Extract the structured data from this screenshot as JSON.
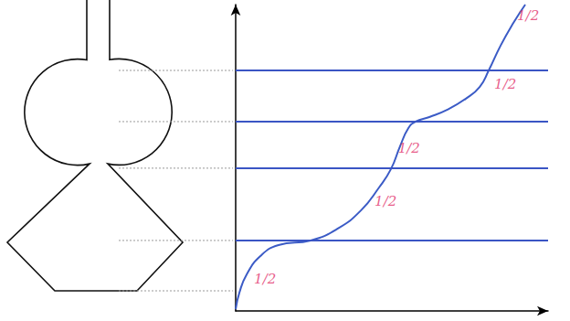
{
  "chart_data": {
    "type": "line",
    "xlim": [
      0,
      100
    ],
    "ylim": [
      0,
      100
    ],
    "tick_labels": false,
    "grid": false,
    "color": "#3b5bc6",
    "x": [
      0,
      1.2,
      3.5,
      7.9,
      13.7,
      24.0,
      32.7,
      40.1,
      45.9,
      49.7,
      52.6,
      55.3,
      57.6,
      62.0,
      67.8,
      73.7,
      78.1,
      81.0,
      84.8,
      88.9,
      92.7
    ],
    "values": [
      0.6,
      6.0,
      11.9,
      17.9,
      21.5,
      23.0,
      26.9,
      32.8,
      40.3,
      46.3,
      53.7,
      59.7,
      61.8,
      63.3,
      65.7,
      69.3,
      73.1,
      78.5,
      86.6,
      94.0,
      100
    ],
    "levels": [
      23,
      46.6,
      61.8,
      78.5
    ],
    "level_color": "#3a55c4",
    "annotation_color": "#e2336b",
    "annotations": [
      {
        "text": "1/2",
        "x": 9.4,
        "y": 10.4
      },
      {
        "text": "1/2",
        "x": 48.0,
        "y": 35.8
      },
      {
        "text": "1/2",
        "x": 55.5,
        "y": 53.1
      },
      {
        "text": "1/2",
        "x": 86.3,
        "y": 74.0
      },
      {
        "text": "1/2",
        "x": 93.6,
        "y": 96.5
      }
    ]
  }
}
